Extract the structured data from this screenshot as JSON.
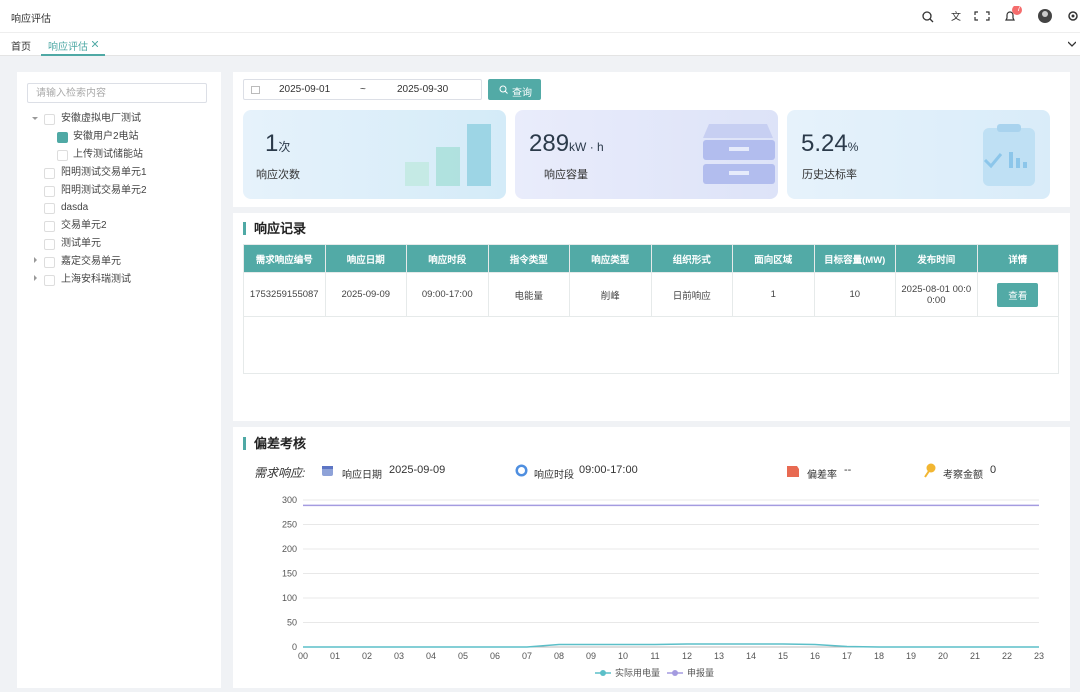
{
  "header": {
    "title": "响应评估",
    "badge": "7"
  },
  "tabs": [
    "首页",
    "响应评估"
  ],
  "tree": {
    "placeholder": "请输入检索内容",
    "nodes": [
      "安徽虚拟电厂测试",
      "安徽用户2电站",
      "上传测试储能站",
      "阳明测试交易单元1",
      "阳明测试交易单元2",
      "dasda",
      "交易单元2",
      "测试单元",
      "嘉定交易单元",
      "上海安科瑞测试"
    ]
  },
  "filter": {
    "start": "2025-09-01",
    "separator": "~",
    "end": "2025-09-30",
    "button": "查询"
  },
  "stats": [
    {
      "value": "1",
      "unit": "次",
      "label": "响应次数"
    },
    {
      "value": "289",
      "unit": "kW · h",
      "label": "响应容量"
    },
    {
      "value": "5.24",
      "unit": "%",
      "label": "历史达标率"
    }
  ],
  "records": {
    "title": "响应记录",
    "columns": [
      "需求响应编号",
      "响应日期",
      "响应时段",
      "指令类型",
      "响应类型",
      "组织形式",
      "面向区域",
      "目标容量(MW)",
      "发布时间",
      "详情"
    ],
    "rows": [
      [
        "1753259155087",
        "2025-09-09",
        "09:00-17:00",
        "电能量",
        "削峰",
        "日前响应",
        "1",
        "10",
        "2025-08-01 00:00:00",
        "查看"
      ]
    ]
  },
  "deviation": {
    "title": "偏差考核",
    "demand_label": "需求响应:",
    "date_label": "响应日期",
    "date": "2025-09-09",
    "period_label": "响应时段",
    "period": "09:00-17:00",
    "rate_label": "偏差率",
    "rate": "--",
    "amount_label": "考察金额",
    "amount": "0"
  },
  "chart_data": {
    "type": "line",
    "x": [
      "00",
      "01",
      "02",
      "03",
      "04",
      "05",
      "06",
      "07",
      "08",
      "09",
      "10",
      "11",
      "12",
      "13",
      "14",
      "15",
      "16",
      "17",
      "18",
      "19",
      "20",
      "21",
      "22",
      "23"
    ],
    "series": [
      {
        "name": "实际用电量",
        "color": "#5bbfc8",
        "values": [
          0,
          0,
          0,
          0,
          0,
          0,
          0,
          0,
          5,
          5,
          5,
          5,
          6,
          6,
          6,
          6,
          5,
          1,
          0,
          0,
          0,
          0,
          0,
          0
        ]
      },
      {
        "name": "申报量",
        "color": "#a49be0",
        "values": [
          289,
          289,
          289,
          289,
          289,
          289,
          289,
          289,
          289,
          289,
          289,
          289,
          289,
          289,
          289,
          289,
          289,
          289,
          289,
          289,
          289,
          289,
          289,
          289
        ]
      }
    ],
    "ylim": [
      0,
      300
    ],
    "yticks": [
      0,
      50,
      100,
      150,
      200,
      250,
      300
    ],
    "grid": true
  }
}
